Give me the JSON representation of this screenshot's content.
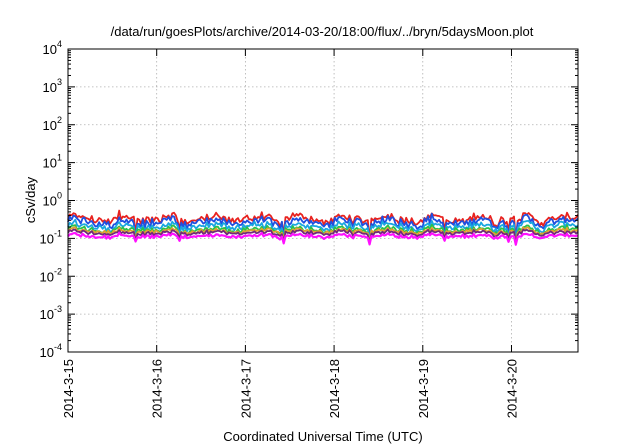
{
  "chart_data": {
    "type": "line",
    "title": "/data/run/goesPlots/archive/2014-03-20/18:00/flux/../bryn/5daysMoon.plot",
    "xlabel": "Coordinated Universal Time (UTC)",
    "ylabel": "cSv/day",
    "yscale": "log",
    "ylim": [
      0.0001,
      10000
    ],
    "y_ticks": [
      {
        "base": "10",
        "exp": "-4"
      },
      {
        "base": "10",
        "exp": "-3"
      },
      {
        "base": "10",
        "exp": "-2"
      },
      {
        "base": "10",
        "exp": "-1"
      },
      {
        "base": "10",
        "exp": "0"
      },
      {
        "base": "10",
        "exp": "1"
      },
      {
        "base": "10",
        "exp": "2"
      },
      {
        "base": "10",
        "exp": "3"
      },
      {
        "base": "10",
        "exp": "4"
      }
    ],
    "x_ticks": [
      "2014-3-15",
      "2014-3-16",
      "2014-3-17",
      "2014-3-18",
      "2014-3-19",
      "2014-3-20"
    ],
    "xlim": [
      "2014-03-15",
      "2014-03-20 18:00"
    ],
    "grid": true,
    "series": [
      {
        "color": "#e8221f",
        "level": 0.33,
        "spread": 0.12
      },
      {
        "color": "#1f4fe0",
        "level": 0.27,
        "spread": 0.12
      },
      {
        "color": "#19a7e0",
        "level": 0.21,
        "spread": 0.1
      },
      {
        "color": "#29c24a",
        "level": 0.17,
        "spread": 0.08
      },
      {
        "color": "#e0a030",
        "level": 0.155,
        "spread": 0.06
      },
      {
        "color": "#6f2a7a",
        "level": 0.14,
        "spread": 0.06
      },
      {
        "color": "#ff10ff",
        "level": 0.115,
        "spread": 0.05
      }
    ]
  }
}
